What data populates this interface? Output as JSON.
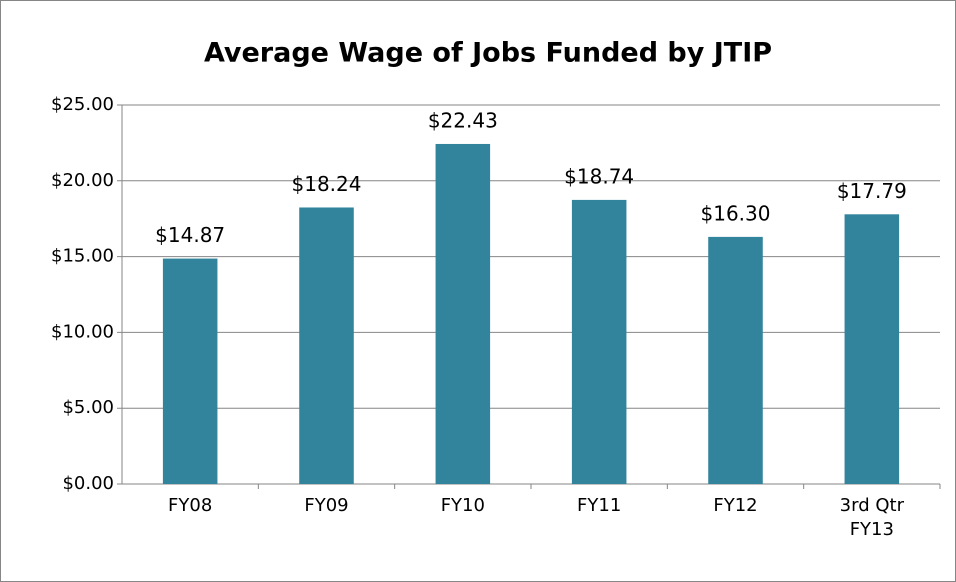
{
  "chart_data": {
    "type": "bar",
    "title": "Average Wage of Jobs Funded by JTIP",
    "categories": [
      "FY08",
      "FY09",
      "FY10",
      "FY11",
      "FY12",
      "3rd Qtr FY13"
    ],
    "values": [
      14.87,
      18.24,
      22.43,
      18.74,
      16.3,
      17.79
    ],
    "value_labels": [
      "$14.87",
      "$18.24",
      "$22.43",
      "$18.74",
      "$16.30",
      "$17.79"
    ],
    "color": "#31849b",
    "ylim": [
      0,
      25
    ],
    "yticks": [
      {
        "value": 0,
        "label": "$0.00"
      },
      {
        "value": 5,
        "label": "$5.00"
      },
      {
        "value": 10,
        "label": "$10.00"
      },
      {
        "value": 15,
        "label": "$15.00"
      },
      {
        "value": 20,
        "label": "$20.00"
      },
      {
        "value": 25,
        "label": "$25.00"
      }
    ],
    "grid": true
  }
}
